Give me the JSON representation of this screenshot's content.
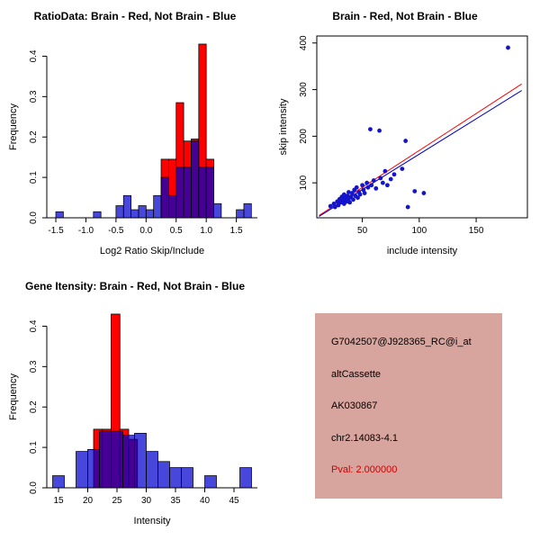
{
  "figure": {
    "background": "#ffffff"
  },
  "chart_data": [
    {
      "id": "ratio-histogram",
      "type": "histogram",
      "title": "RatioData: Brain - Red, Not Brain - Blue",
      "xlabel": "Log2 Ratio Skip/Include",
      "ylabel": "Frequency",
      "xlim": [
        -1.65,
        1.85
      ],
      "ylim": [
        0,
        0.45
      ],
      "grid": false,
      "xticks": {
        "pos": [
          -1.5,
          -1,
          -0.5,
          0,
          0.5,
          1,
          1.5
        ],
        "labels": [
          "-1.5",
          "-1.0",
          "-0.5",
          "0.0",
          "0.5",
          "1.0",
          "1.5"
        ]
      },
      "yticks": {
        "pos": [
          0,
          0.1,
          0.2,
          0.3,
          0.4
        ],
        "labels": [
          "0.0",
          "0.1",
          "0.2",
          "0.3",
          "0.4"
        ]
      },
      "bin_width": 0.125,
      "series": [
        {
          "name": "brain-red",
          "color": "#ff0000",
          "opacity": 1,
          "bins": [
            [
              0.25,
              0.145
            ],
            [
              0.375,
              0.145
            ],
            [
              0.5,
              0.285
            ],
            [
              0.625,
              0.19
            ],
            [
              0.75,
              0.195
            ],
            [
              0.875,
              0.43
            ],
            [
              1,
              0.145
            ]
          ]
        },
        {
          "name": "not-brain-blue",
          "color": "#0000cd",
          "opacity": 0.72,
          "bins": [
            [
              -1.5,
              0.015
            ],
            [
              -0.875,
              0.015
            ],
            [
              -0.5,
              0.03
            ],
            [
              -0.375,
              0.055
            ],
            [
              -0.25,
              0.02
            ],
            [
              -0.125,
              0.03
            ],
            [
              0,
              0.02
            ],
            [
              0.125,
              0.055
            ],
            [
              0.25,
              0.1
            ],
            [
              0.375,
              0.055
            ],
            [
              0.5,
              0.125
            ],
            [
              0.625,
              0.125
            ],
            [
              0.75,
              0.19
            ],
            [
              0.875,
              0.125
            ],
            [
              1,
              0.125
            ],
            [
              1.125,
              0.035
            ],
            [
              1.5,
              0.02
            ],
            [
              1.625,
              0.035
            ]
          ]
        }
      ]
    },
    {
      "id": "intensity-scatter",
      "type": "scatter",
      "title": "Brain - Red, Not Brain - Blue",
      "xlabel": "include intensity",
      "ylabel": "skip intensity",
      "xlim": [
        10,
        195
      ],
      "ylim": [
        25,
        415
      ],
      "grid": false,
      "xticks": {
        "pos": [
          50,
          100,
          150
        ],
        "labels": [
          "50",
          "100",
          "150"
        ]
      },
      "yticks": {
        "pos": [
          100,
          200,
          300,
          400
        ],
        "labels": [
          "100",
          "200",
          "300",
          "400"
        ]
      },
      "point_color": "#1414cc",
      "points": [
        [
          22,
          50
        ],
        [
          25,
          55
        ],
        [
          26,
          48
        ],
        [
          28,
          60
        ],
        [
          29,
          52
        ],
        [
          30,
          65
        ],
        [
          31,
          58
        ],
        [
          32,
          70
        ],
        [
          33,
          62
        ],
        [
          34,
          55
        ],
        [
          34,
          75
        ],
        [
          35,
          68
        ],
        [
          36,
          60
        ],
        [
          37,
          72
        ],
        [
          38,
          65
        ],
        [
          38,
          80
        ],
        [
          39,
          58
        ],
        [
          40,
          70
        ],
        [
          41,
          78
        ],
        [
          42,
          64
        ],
        [
          43,
          85
        ],
        [
          44,
          72
        ],
        [
          45,
          90
        ],
        [
          46,
          68
        ],
        [
          47,
          80
        ],
        [
          48,
          75
        ],
        [
          50,
          95
        ],
        [
          51,
          85
        ],
        [
          52,
          78
        ],
        [
          54,
          100
        ],
        [
          55,
          90
        ],
        [
          57,
          215
        ],
        [
          58,
          95
        ],
        [
          60,
          105
        ],
        [
          62,
          88
        ],
        [
          65,
          212
        ],
        [
          66,
          110
        ],
        [
          68,
          100
        ],
        [
          70,
          125
        ],
        [
          72,
          95
        ],
        [
          75,
          108
        ],
        [
          78,
          118
        ],
        [
          85,
          130
        ],
        [
          88,
          190
        ],
        [
          90,
          48
        ],
        [
          96,
          82
        ],
        [
          104,
          78
        ],
        [
          178,
          390
        ]
      ],
      "lines": [
        {
          "name": "red-fit",
          "color": "#ff0000",
          "x": [
            12,
            190
          ],
          "y": [
            30,
            312
          ]
        },
        {
          "name": "blue-fit",
          "color": "#0000cd",
          "x": [
            12,
            190
          ],
          "y": [
            28,
            298
          ]
        }
      ]
    },
    {
      "id": "gene-intensity-histogram",
      "type": "histogram",
      "title": "Gene Itensity: Brain - Red, Not Brain - Blue",
      "xlabel": "Intensity",
      "ylabel": "Frequency",
      "xlim": [
        13,
        49
      ],
      "ylim": [
        0,
        0.45
      ],
      "grid": false,
      "xticks": {
        "pos": [
          15,
          20,
          25,
          30,
          35,
          40,
          45
        ],
        "labels": [
          "15",
          "20",
          "25",
          "30",
          "35",
          "40",
          "45"
        ]
      },
      "yticks": {
        "pos": [
          0,
          0.1,
          0.2,
          0.3,
          0.4
        ],
        "labels": [
          "0.0",
          "0.1",
          "0.2",
          "0.3",
          "0.4"
        ]
      },
      "bin_width": 2,
      "series": [
        {
          "name": "brain-red",
          "color": "#ff0000",
          "opacity": 1,
          "bins": [
            [
              21,
              0.145,
              1.5
            ],
            [
              22.5,
              0.145,
              1.5
            ],
            [
              24,
              0.43,
              1.5
            ],
            [
              25.5,
              0.145,
              1.5
            ],
            [
              27,
              0.12,
              1.5
            ]
          ]
        },
        {
          "name": "not-brain-blue",
          "color": "#0000cd",
          "opacity": 0.72,
          "bins": [
            [
              14,
              0.03
            ],
            [
              18,
              0.09
            ],
            [
              20,
              0.095
            ],
            [
              22,
              0.14
            ],
            [
              24,
              0.14
            ],
            [
              26,
              0.13
            ],
            [
              28,
              0.135
            ],
            [
              30,
              0.09
            ],
            [
              32,
              0.065
            ],
            [
              34,
              0.05
            ],
            [
              36,
              0.05
            ],
            [
              40,
              0.03
            ],
            [
              46,
              0.05
            ]
          ]
        }
      ]
    }
  ],
  "info_box": {
    "probe_id": "G7042507@J928365_RC@i_at",
    "event_type": "altCassette",
    "accession": "AK030867",
    "location": "chr2.14083-4.1",
    "pval": "Pval: 2.000000",
    "bg_color": "#d8a49e",
    "pval_color": "#cc0000",
    "text_color": "#000000"
  }
}
